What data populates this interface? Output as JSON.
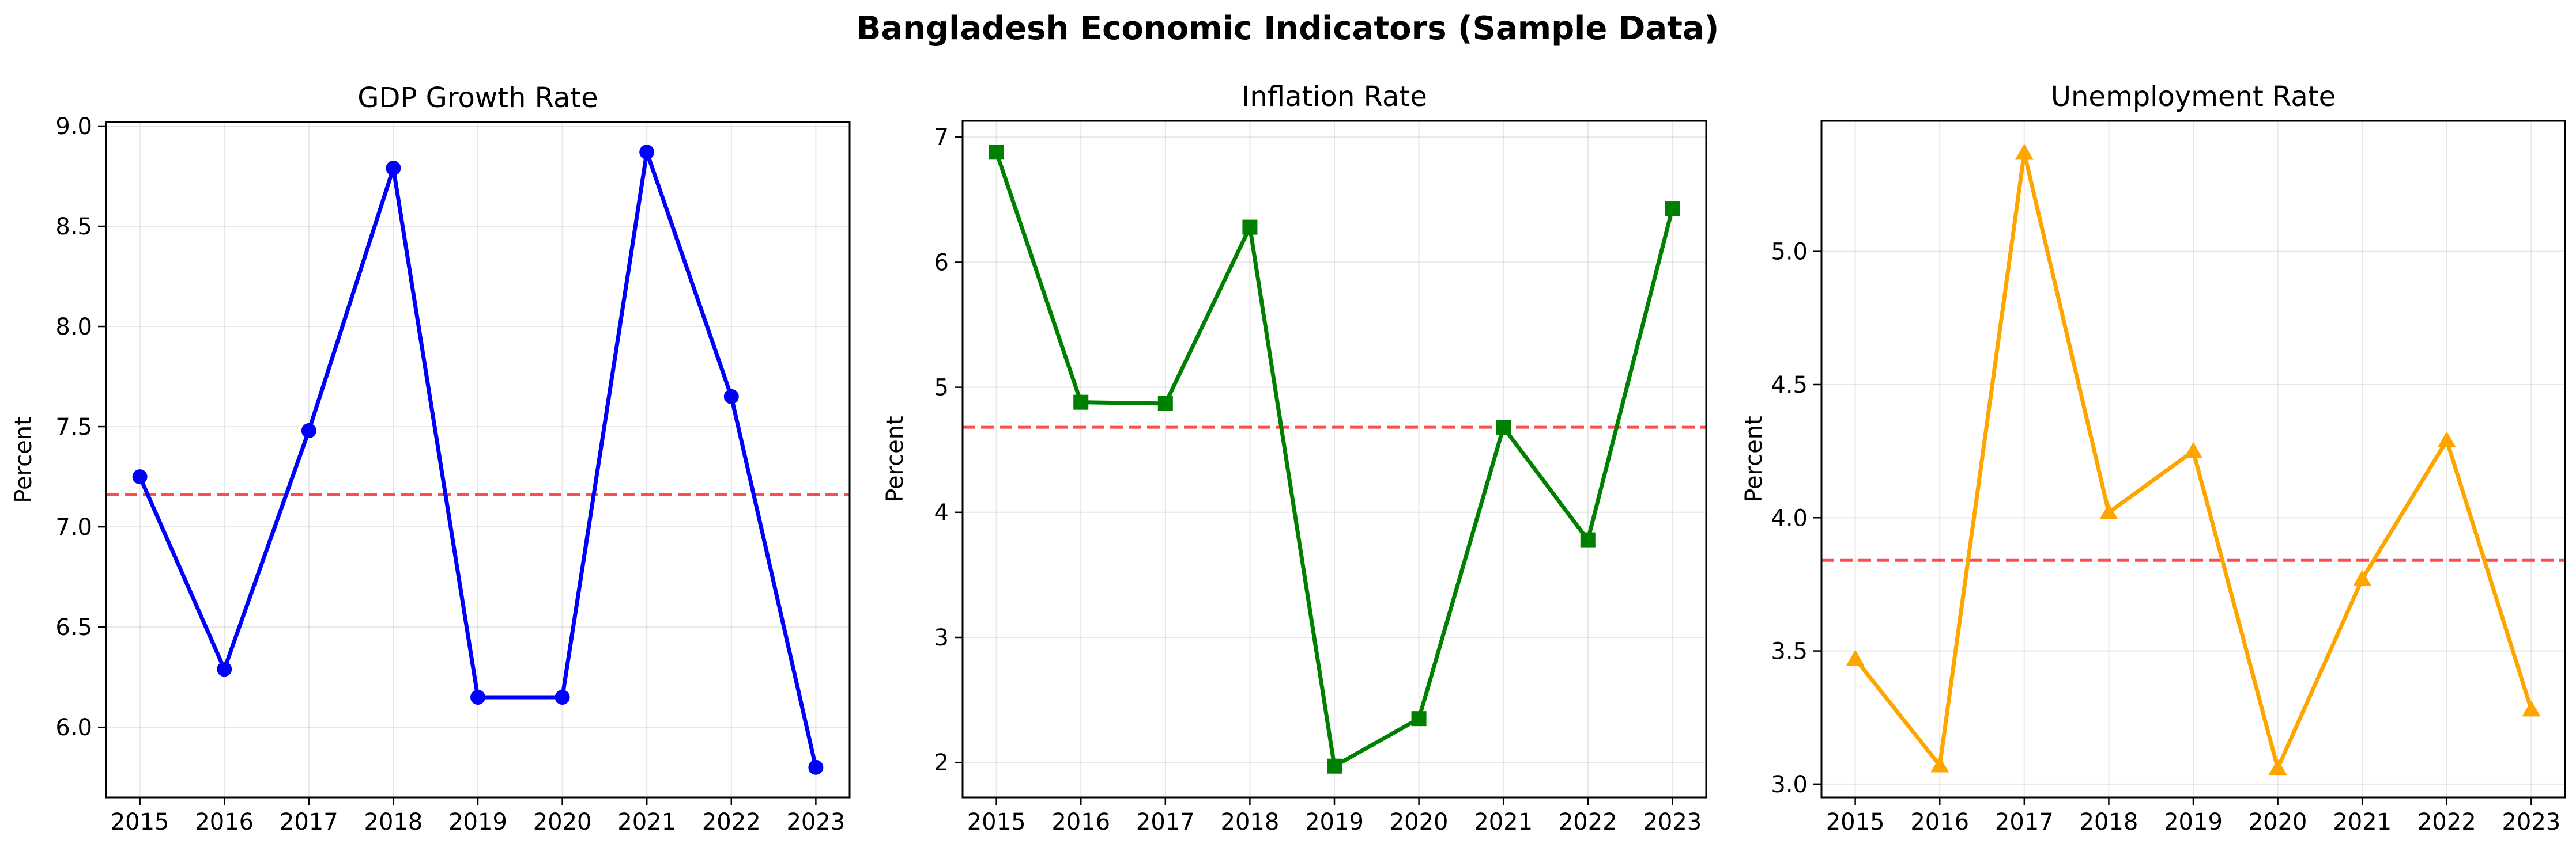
{
  "figure": {
    "suptitle": "Bangladesh Economic Indicators (Sample Data)"
  },
  "chart_data": [
    {
      "type": "line",
      "title": "GDP Growth Rate",
      "xlabel": "",
      "ylabel": "Percent",
      "x": [
        2015,
        2016,
        2017,
        2018,
        2019,
        2020,
        2021,
        2022,
        2023
      ],
      "series": [
        {
          "values": [
            7.25,
            6.29,
            7.48,
            8.79,
            6.15,
            6.15,
            8.87,
            7.65,
            5.8
          ],
          "color": "#0000ff",
          "marker": "circle"
        }
      ],
      "reference_line": {
        "value": 7.16,
        "color": "#ff0000",
        "style": "dashed"
      },
      "xlim": [
        2014.6,
        2023.4
      ],
      "ylim": [
        5.65,
        9.02
      ],
      "yticks": [
        6.0,
        6.5,
        7.0,
        7.5,
        8.0,
        8.5,
        9.0
      ],
      "ytick_labels": [
        "6.0",
        "6.5",
        "7.0",
        "7.5",
        "8.0",
        "8.5",
        "9.0"
      ],
      "grid": true
    },
    {
      "type": "line",
      "title": "Inflation Rate",
      "xlabel": "",
      "ylabel": "Percent",
      "x": [
        2015,
        2016,
        2017,
        2018,
        2019,
        2020,
        2021,
        2022,
        2023
      ],
      "series": [
        {
          "values": [
            6.88,
            4.88,
            4.87,
            6.28,
            1.97,
            2.35,
            4.68,
            3.78,
            6.43
          ],
          "color": "#008000",
          "marker": "square"
        }
      ],
      "reference_line": {
        "value": 4.68,
        "color": "#ff0000",
        "style": "dashed"
      },
      "xlim": [
        2014.6,
        2023.4
      ],
      "ylim": [
        1.72,
        7.13
      ],
      "yticks": [
        2,
        3,
        4,
        5,
        6,
        7
      ],
      "ytick_labels": [
        "2",
        "3",
        "4",
        "5",
        "6",
        "7"
      ],
      "grid": true
    },
    {
      "type": "line",
      "title": "Unemployment Rate",
      "xlabel": "",
      "ylabel": "Percent",
      "x": [
        2015,
        2016,
        2017,
        2018,
        2019,
        2020,
        2021,
        2022,
        2023
      ],
      "series": [
        {
          "values": [
            3.47,
            3.07,
            5.37,
            4.02,
            4.25,
            3.06,
            3.77,
            4.29,
            3.28
          ],
          "color": "#ffa500",
          "marker": "triangle"
        }
      ],
      "reference_line": {
        "value": 3.84,
        "color": "#ff0000",
        "style": "dashed"
      },
      "xlim": [
        2014.6,
        2023.4
      ],
      "ylim": [
        2.95,
        5.49
      ],
      "yticks": [
        3.0,
        3.5,
        4.0,
        4.5,
        5.0
      ],
      "ytick_labels": [
        "3.0",
        "3.5",
        "4.0",
        "4.5",
        "5.0"
      ],
      "grid": true
    }
  ]
}
